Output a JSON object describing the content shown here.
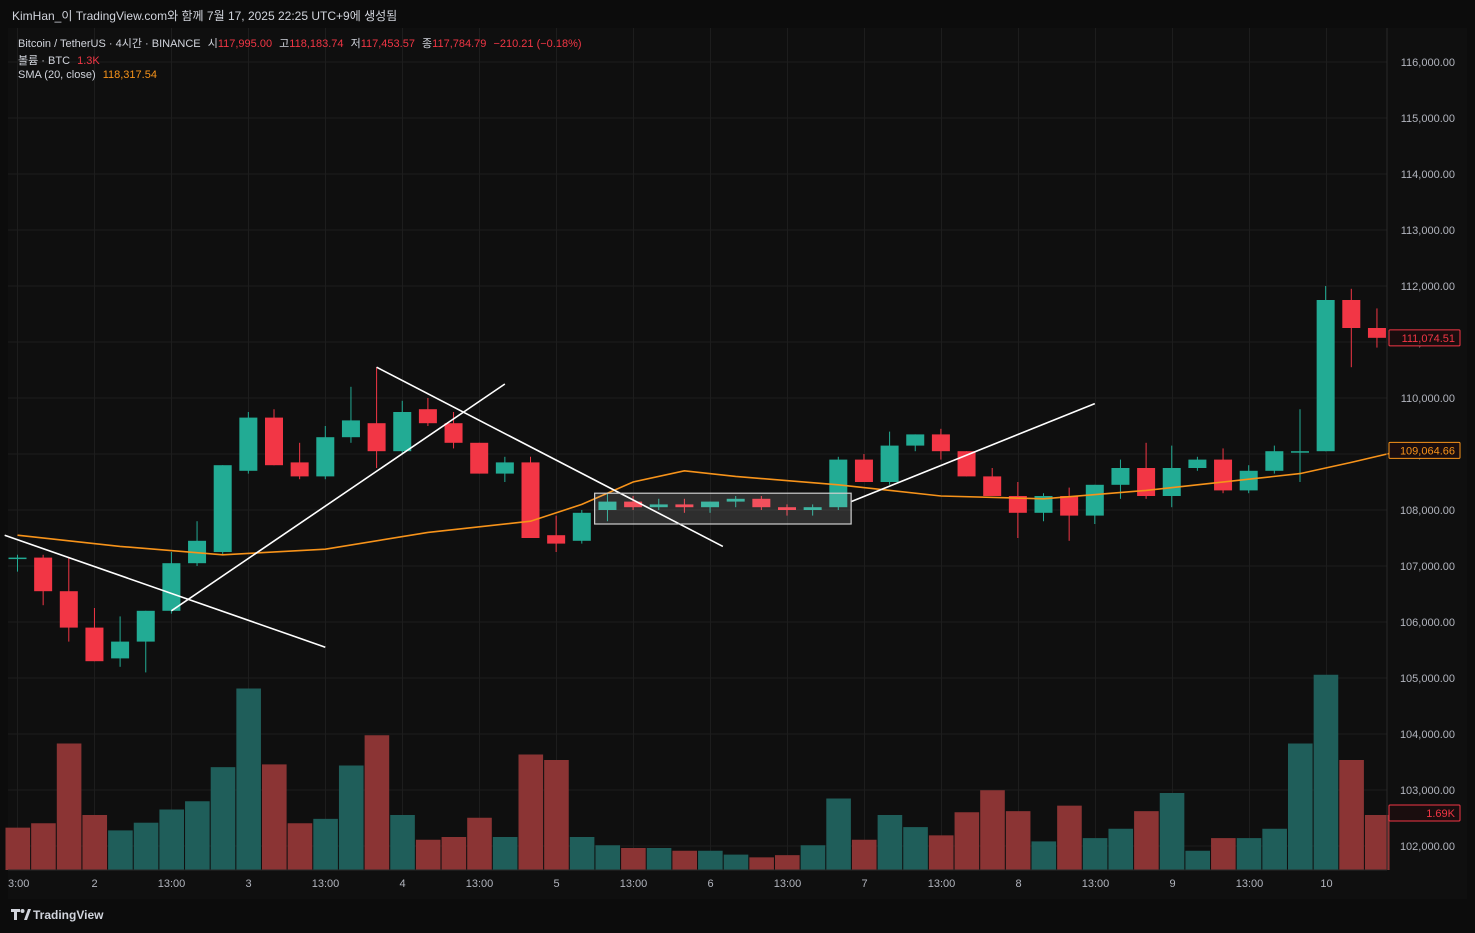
{
  "header": {
    "title": "KimHan_이 TradingView.com와 함께 7월 17, 2025 22:25 UTC+9에 생성됨"
  },
  "legend": {
    "symbol": "Bitcoin / TetherUS · 4시간 · BINANCE",
    "open_label": "시",
    "open_value": "117,995.00",
    "high_label": "고",
    "high_value": "118,183.74",
    "low_label": "저",
    "low_value": "117,453.57",
    "close_label": "종",
    "close_value": "117,784.79",
    "change": "−210.21 (−0.18%)",
    "volume_label": "볼륨 · BTC",
    "volume_value": "1.3K",
    "sma_label": "SMA (20, close)",
    "sma_value": "118,317.54"
  },
  "footer": {
    "brand": "TradingView"
  },
  "colors": {
    "up": "#22ab94",
    "down": "#f23645",
    "sma": "#f7931a",
    "volume_up": "#1f5e5a",
    "volume_down": "#8b3434"
  },
  "chart_data": {
    "type": "candlestick",
    "symbol": "BTCUSDT",
    "interval": "4시간",
    "y_range": [
      101500,
      116800
    ],
    "price_ticks": [
      "116,000.00",
      "115,000.00",
      "114,000.00",
      "113,000.00",
      "112,000.00",
      "111,000.00",
      "110,000.00",
      "109,000.00",
      "108,000.00",
      "107,000.00",
      "106,000.00",
      "105,000.00",
      "104,000.00",
      "103,000.00",
      "102,000.00"
    ],
    "x_ticks": [
      "3:00",
      "2",
      "13:00",
      "3",
      "13:00",
      "4",
      "13:00",
      "5",
      "13:00",
      "6",
      "13:00",
      "7",
      "13:00",
      "8",
      "13:00",
      "9",
      "13:00",
      "10"
    ],
    "candles": [
      {
        "o": 107150,
        "h": 107200,
        "l": 106900,
        "c": 107150
      },
      {
        "o": 107150,
        "h": 107200,
        "l": 106300,
        "c": 106550
      },
      {
        "o": 106550,
        "h": 107150,
        "l": 105650,
        "c": 105900
      },
      {
        "o": 105900,
        "h": 106250,
        "l": 105300,
        "c": 105300
      },
      {
        "o": 105350,
        "h": 106100,
        "l": 105200,
        "c": 105650
      },
      {
        "o": 105650,
        "h": 106200,
        "l": 105100,
        "c": 106200
      },
      {
        "o": 106200,
        "h": 107250,
        "l": 106150,
        "c": 107050
      },
      {
        "o": 107050,
        "h": 107800,
        "l": 107000,
        "c": 107450
      },
      {
        "o": 107250,
        "h": 108800,
        "l": 107200,
        "c": 108800
      },
      {
        "o": 108700,
        "h": 109750,
        "l": 108650,
        "c": 109650
      },
      {
        "o": 109650,
        "h": 109800,
        "l": 108800,
        "c": 108800
      },
      {
        "o": 108850,
        "h": 109200,
        "l": 108550,
        "c": 108600
      },
      {
        "o": 108600,
        "h": 109500,
        "l": 108550,
        "c": 109300
      },
      {
        "o": 109300,
        "h": 110200,
        "l": 109200,
        "c": 109600
      },
      {
        "o": 109550,
        "h": 110550,
        "l": 108750,
        "c": 109050
      },
      {
        "o": 109050,
        "h": 109950,
        "l": 109000,
        "c": 109750
      },
      {
        "o": 109800,
        "h": 110000,
        "l": 109500,
        "c": 109550
      },
      {
        "o": 109550,
        "h": 109750,
        "l": 109100,
        "c": 109200
      },
      {
        "o": 109200,
        "h": 109200,
        "l": 108650,
        "c": 108650
      },
      {
        "o": 108650,
        "h": 108950,
        "l": 108500,
        "c": 108850
      },
      {
        "o": 108850,
        "h": 108950,
        "l": 107500,
        "c": 107500
      },
      {
        "o": 107550,
        "h": 107900,
        "l": 107250,
        "c": 107400
      },
      {
        "o": 107450,
        "h": 108000,
        "l": 107400,
        "c": 107950
      },
      {
        "o": 108000,
        "h": 108300,
        "l": 107800,
        "c": 108150
      },
      {
        "o": 108150,
        "h": 108250,
        "l": 108000,
        "c": 108050
      },
      {
        "o": 108050,
        "h": 108200,
        "l": 108000,
        "c": 108100
      },
      {
        "o": 108100,
        "h": 108200,
        "l": 107950,
        "c": 108050
      },
      {
        "o": 108050,
        "h": 108150,
        "l": 107950,
        "c": 108150
      },
      {
        "o": 108150,
        "h": 108250,
        "l": 108050,
        "c": 108200
      },
      {
        "o": 108200,
        "h": 108250,
        "l": 108000,
        "c": 108050
      },
      {
        "o": 108050,
        "h": 108100,
        "l": 107900,
        "c": 108000
      },
      {
        "o": 108000,
        "h": 108100,
        "l": 107900,
        "c": 108050
      },
      {
        "o": 108050,
        "h": 108950,
        "l": 108000,
        "c": 108900
      },
      {
        "o": 108900,
        "h": 109000,
        "l": 108500,
        "c": 108500
      },
      {
        "o": 108500,
        "h": 109400,
        "l": 108450,
        "c": 109150
      },
      {
        "o": 109150,
        "h": 109350,
        "l": 109050,
        "c": 109350
      },
      {
        "o": 109350,
        "h": 109450,
        "l": 108900,
        "c": 109050
      },
      {
        "o": 109050,
        "h": 109050,
        "l": 108600,
        "c": 108600
      },
      {
        "o": 108600,
        "h": 108750,
        "l": 108250,
        "c": 108250
      },
      {
        "o": 108250,
        "h": 108500,
        "l": 107500,
        "c": 107950
      },
      {
        "o": 107950,
        "h": 108300,
        "l": 107800,
        "c": 108250
      },
      {
        "o": 108250,
        "h": 108400,
        "l": 107450,
        "c": 107900
      },
      {
        "o": 107900,
        "h": 108450,
        "l": 107750,
        "c": 108450
      },
      {
        "o": 108450,
        "h": 108900,
        "l": 108200,
        "c": 108750
      },
      {
        "o": 108750,
        "h": 109200,
        "l": 108200,
        "c": 108250
      },
      {
        "o": 108250,
        "h": 109150,
        "l": 108050,
        "c": 108750
      },
      {
        "o": 108750,
        "h": 108950,
        "l": 108700,
        "c": 108900
      },
      {
        "o": 108900,
        "h": 109100,
        "l": 108300,
        "c": 108350
      },
      {
        "o": 108350,
        "h": 108800,
        "l": 108300,
        "c": 108700
      },
      {
        "o": 108700,
        "h": 109150,
        "l": 108650,
        "c": 109050
      },
      {
        "o": 109050,
        "h": 109800,
        "l": 108500,
        "c": 109050
      },
      {
        "o": 109050,
        "h": 112000,
        "l": 109050,
        "c": 111750
      },
      {
        "o": 111750,
        "h": 111950,
        "l": 110550,
        "c": 111250
      },
      {
        "o": 111250,
        "h": 111600,
        "l": 110900,
        "c": 111074.51
      }
    ],
    "volume": [
      {
        "v": 0.77,
        "d": "down"
      },
      {
        "v": 0.85,
        "d": "down"
      },
      {
        "v": 2.3,
        "d": "down"
      },
      {
        "v": 1.0,
        "d": "down"
      },
      {
        "v": 0.72,
        "d": "up"
      },
      {
        "v": 0.86,
        "d": "up"
      },
      {
        "v": 1.1,
        "d": "up"
      },
      {
        "v": 1.25,
        "d": "up"
      },
      {
        "v": 1.87,
        "d": "up"
      },
      {
        "v": 3.3,
        "d": "up"
      },
      {
        "v": 1.92,
        "d": "down"
      },
      {
        "v": 0.85,
        "d": "down"
      },
      {
        "v": 0.93,
        "d": "up"
      },
      {
        "v": 1.9,
        "d": "up"
      },
      {
        "v": 2.45,
        "d": "down"
      },
      {
        "v": 1.0,
        "d": "up"
      },
      {
        "v": 0.55,
        "d": "down"
      },
      {
        "v": 0.6,
        "d": "down"
      },
      {
        "v": 0.95,
        "d": "down"
      },
      {
        "v": 0.6,
        "d": "up"
      },
      {
        "v": 2.1,
        "d": "down"
      },
      {
        "v": 2.0,
        "d": "down"
      },
      {
        "v": 0.6,
        "d": "up"
      },
      {
        "v": 0.45,
        "d": "up"
      },
      {
        "v": 0.4,
        "d": "down"
      },
      {
        "v": 0.4,
        "d": "up"
      },
      {
        "v": 0.35,
        "d": "down"
      },
      {
        "v": 0.35,
        "d": "up"
      },
      {
        "v": 0.28,
        "d": "up"
      },
      {
        "v": 0.23,
        "d": "down"
      },
      {
        "v": 0.27,
        "d": "down"
      },
      {
        "v": 0.45,
        "d": "up"
      },
      {
        "v": 1.3,
        "d": "up"
      },
      {
        "v": 0.55,
        "d": "down"
      },
      {
        "v": 1.0,
        "d": "up"
      },
      {
        "v": 0.78,
        "d": "up"
      },
      {
        "v": 0.63,
        "d": "down"
      },
      {
        "v": 1.05,
        "d": "down"
      },
      {
        "v": 1.45,
        "d": "down"
      },
      {
        "v": 1.07,
        "d": "down"
      },
      {
        "v": 0.52,
        "d": "up"
      },
      {
        "v": 1.17,
        "d": "down"
      },
      {
        "v": 0.58,
        "d": "up"
      },
      {
        "v": 0.75,
        "d": "up"
      },
      {
        "v": 1.07,
        "d": "down"
      },
      {
        "v": 1.4,
        "d": "up"
      },
      {
        "v": 0.35,
        "d": "up"
      },
      {
        "v": 0.58,
        "d": "down"
      },
      {
        "v": 0.58,
        "d": "up"
      },
      {
        "v": 0.75,
        "d": "up"
      },
      {
        "v": 2.3,
        "d": "up"
      },
      {
        "v": 3.55,
        "d": "up"
      },
      {
        "v": 2.0,
        "d": "down"
      },
      {
        "v": 1.0,
        "d": "down"
      }
    ],
    "sma": [
      [
        0,
        107550
      ],
      [
        4,
        107350
      ],
      [
        8,
        107200
      ],
      [
        12,
        107300
      ],
      [
        16,
        107600
      ],
      [
        20,
        107800
      ],
      [
        22,
        108100
      ],
      [
        24,
        108500
      ],
      [
        26,
        108700
      ],
      [
        28,
        108600
      ],
      [
        32,
        108450
      ],
      [
        36,
        108250
      ],
      [
        40,
        108200
      ],
      [
        44,
        108350
      ],
      [
        48,
        108550
      ],
      [
        50,
        108650
      ],
      [
        52,
        108850
      ],
      [
        54,
        109064.66
      ]
    ],
    "price_labels": [
      {
        "value": 111074.51,
        "text": "111,074.51",
        "style": "down"
      },
      {
        "value": 109064.66,
        "text": "109,064.66",
        "style": "sma"
      },
      {
        "text": "1.69K",
        "style": "down",
        "pane": "volume"
      }
    ],
    "drawings": [
      {
        "kind": "line",
        "from": [
          -0.5,
          107550
        ],
        "to": [
          12,
          105550
        ]
      },
      {
        "kind": "line",
        "from": [
          6,
          106200
        ],
        "to": [
          19,
          110250
        ]
      },
      {
        "kind": "line",
        "from": [
          14,
          110550
        ],
        "to": [
          27.5,
          107350
        ]
      },
      {
        "kind": "line",
        "from": [
          32.5,
          108150
        ],
        "to": [
          42,
          109900
        ]
      },
      {
        "kind": "rect",
        "from": [
          22.5,
          108300
        ],
        "to": [
          32.5,
          107750
        ]
      }
    ]
  }
}
